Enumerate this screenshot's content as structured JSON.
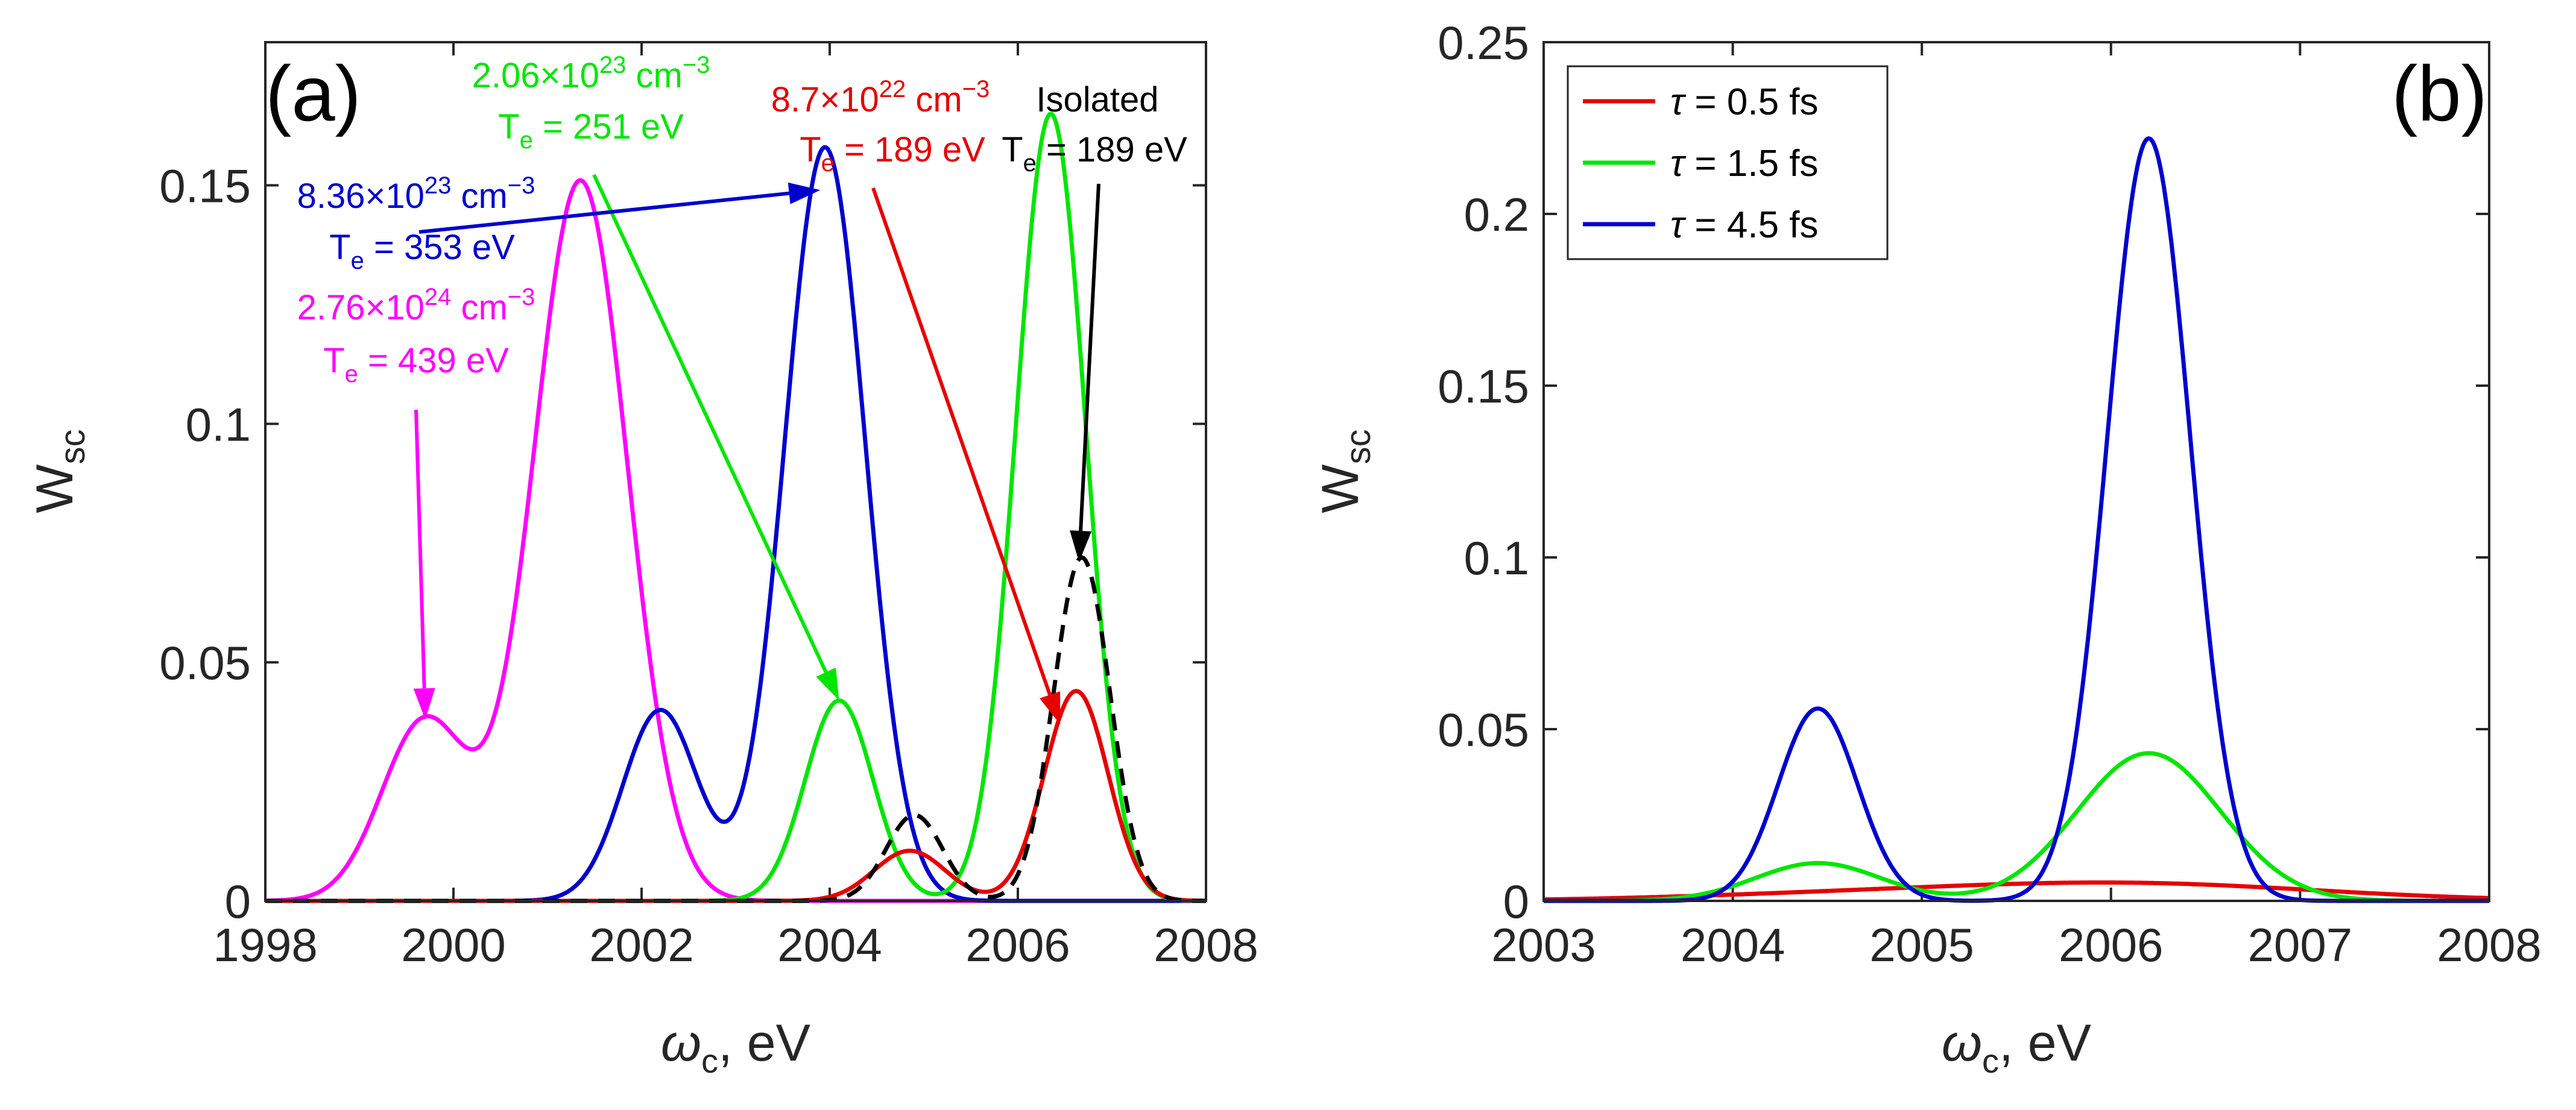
{
  "chart_data": [
    {
      "type": "line",
      "panel_label": "(a)",
      "xlabel": "ω_c, eV",
      "ylabel": "W_sc",
      "xlim": [
        1998,
        2008
      ],
      "ylim": [
        0,
        0.18
      ],
      "x_ticks": [
        1998,
        2000,
        2002,
        2004,
        2006,
        2008
      ],
      "y_ticks": [
        0,
        0.05,
        0.1,
        0.15
      ],
      "x_tick_labels": [
        "1998",
        "2000",
        "2002",
        "2004",
        "2006",
        "2008"
      ],
      "y_tick_labels": [
        "0",
        "0.05",
        "0.1",
        "0.15"
      ],
      "series": [
        {
          "name": "2.76×10^24 cm^-3, Te = 439 eV",
          "color": "#ff00ff",
          "style": "solid",
          "peaks": [
            {
              "center": 1999.7,
              "height": 0.038,
              "sigma": 0.46
            },
            {
              "center": 2001.35,
              "height": 0.151,
              "sigma": 0.5
            }
          ]
        },
        {
          "name": "8.36×10^23 cm^-3, Te = 353 eV",
          "color": "#0000cd",
          "style": "solid",
          "peaks": [
            {
              "center": 2002.2,
              "height": 0.04,
              "sigma": 0.4
            },
            {
              "center": 2003.95,
              "height": 0.158,
              "sigma": 0.43
            }
          ]
        },
        {
          "name": "2.06×10^23 cm^-3, Te = 251 eV",
          "color": "#00e600",
          "style": "solid",
          "peaks": [
            {
              "center": 2004.1,
              "height": 0.042,
              "sigma": 0.36
            },
            {
              "center": 2006.35,
              "height": 0.165,
              "sigma": 0.37
            }
          ]
        },
        {
          "name": "8.7×10^22 cm^-3, Te = 189 eV",
          "color": "#e60000",
          "style": "solid",
          "peaks": [
            {
              "center": 2004.85,
              "height": 0.0105,
              "sigma": 0.38
            },
            {
              "center": 2006.62,
              "height": 0.044,
              "sigma": 0.34
            }
          ]
        },
        {
          "name": "Isolated, Te = 189 eV",
          "color": "#000000",
          "style": "dashed",
          "peaks": [
            {
              "center": 2004.9,
              "height": 0.018,
              "sigma": 0.3
            },
            {
              "center": 2006.68,
              "height": 0.072,
              "sigma": 0.3
            }
          ]
        }
      ],
      "annotations": [
        {
          "lines": [
            [
              "2.06×10",
              "23",
              " cm",
              "−3"
            ],
            [
              "T",
              "e",
              " = 251 eV"
            ]
          ],
          "color": "#00e600",
          "target": [
            2004.1,
            0.042
          ]
        },
        {
          "lines": [
            [
              "8.7×10",
              "22",
              " cm",
              "−3"
            ],
            [
              "T",
              "e",
              " = 189 eV"
            ]
          ],
          "color": "#e60000",
          "target": [
            2006.45,
            0.037
          ]
        },
        {
          "lines": [
            [
              "Isolated"
            ],
            [
              "T",
              "e",
              " = 189 eV"
            ]
          ],
          "color": "#000000",
          "target": [
            2006.65,
            0.071
          ]
        },
        {
          "lines": [
            [
              "8.36×10",
              "23",
              " cm",
              "−3"
            ],
            [
              "T",
              "e",
              " = 353 eV"
            ]
          ],
          "color": "#0000cd",
          "target": [
            2003.9,
            0.149
          ]
        },
        {
          "lines": [
            [
              "2.76×10",
              "24",
              " cm",
              "−3"
            ],
            [
              "T",
              "e",
              " = 439 eV"
            ]
          ],
          "color": "#ff00ff",
          "target": [
            1999.7,
            0.038
          ]
        }
      ]
    },
    {
      "type": "line",
      "panel_label": "(b)",
      "xlabel": "ω_c, eV",
      "ylabel": "W_sc",
      "xlim": [
        2003,
        2008
      ],
      "ylim": [
        0,
        0.25
      ],
      "x_ticks": [
        2003,
        2004,
        2005,
        2006,
        2007,
        2008
      ],
      "y_ticks": [
        0,
        0.05,
        0.1,
        0.15,
        0.2,
        0.25
      ],
      "x_tick_labels": [
        "2003",
        "2004",
        "2005",
        "2006",
        "2007",
        "2008"
      ],
      "y_tick_labels": [
        "0",
        "0.05",
        "0.1",
        "0.15",
        "0.2",
        "0.25"
      ],
      "legend_position": "top-left",
      "series": [
        {
          "name": "τ = 0.5 fs",
          "legend_prefix": "τ",
          "legend_suffix": " = 0.5 fs",
          "color": "#e60000",
          "style": "solid",
          "peaks": [
            {
              "center": 2004.5,
              "height": 0.0015,
              "sigma": 0.9
            },
            {
              "center": 2006.1,
              "height": 0.005,
              "sigma": 1.0
            }
          ]
        },
        {
          "name": "τ = 1.5 fs",
          "legend_prefix": "τ",
          "legend_suffix": " = 1.5 fs",
          "color": "#00e600",
          "style": "solid",
          "peaks": [
            {
              "center": 2004.45,
              "height": 0.011,
              "sigma": 0.33
            },
            {
              "center": 2006.2,
              "height": 0.043,
              "sigma": 0.38
            }
          ]
        },
        {
          "name": "τ = 4.5 fs",
          "legend_prefix": "τ",
          "legend_suffix": " = 4.5 fs",
          "color": "#0000cd",
          "style": "solid",
          "peaks": [
            {
              "center": 2004.45,
              "height": 0.056,
              "sigma": 0.21
            },
            {
              "center": 2006.2,
              "height": 0.222,
              "sigma": 0.22
            }
          ]
        }
      ]
    }
  ]
}
